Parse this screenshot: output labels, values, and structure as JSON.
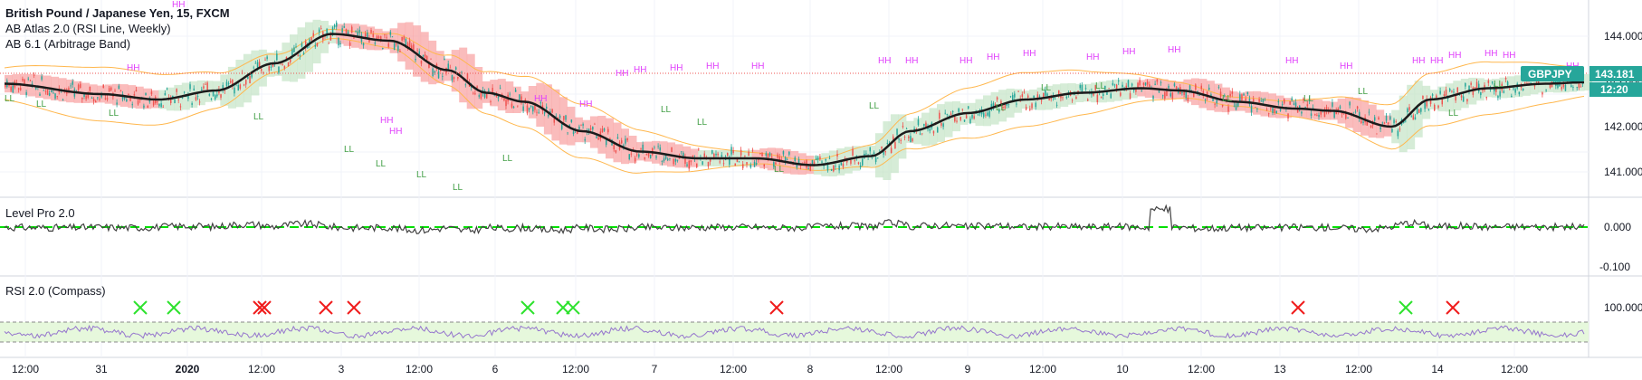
{
  "main": {
    "title": "British Pound / Japanese Yen, 15, FXCM",
    "indicators": [
      "AB Atlas 2.0 (RSI Line, Weekly)",
      "AB 6.1 (Arbitrage Band)"
    ],
    "price_axis": [
      "144.000",
      "143.000",
      "142.000",
      "141.000"
    ],
    "symbol_tag": "GBPJPY",
    "price_tag": "143.181",
    "countdown_tag": "12:20",
    "hh_label": "HH",
    "ll_label": "LL"
  },
  "level_pane": {
    "title": "Level Pro 2.0",
    "axis": [
      "0.000",
      "-0.100"
    ]
  },
  "rsi_pane": {
    "title": "RSI 2.0 (Compass)",
    "axis": [
      "100.000"
    ]
  },
  "time_axis": [
    "12:00",
    "31",
    "2020",
    "12:00",
    "3",
    "12:00",
    "6",
    "12:00",
    "7",
    "12:00",
    "8",
    "12:00",
    "9",
    "12:00",
    "10",
    "12:00",
    "13",
    "12:00",
    "14",
    "12:00"
  ],
  "colors": {
    "bull": "#26a69a",
    "bear": "#ef5350",
    "ma": "#1b1b1b",
    "band": "#ffb74d",
    "price_tag": "#26a69a",
    "level_zero": "#00e000",
    "rsi_zone": "#e6f8dc",
    "cross_buy": "#2ee22e",
    "cross_sell": "#f01c1c",
    "hh": "#e040fb",
    "ll": "#43a047"
  }
}
